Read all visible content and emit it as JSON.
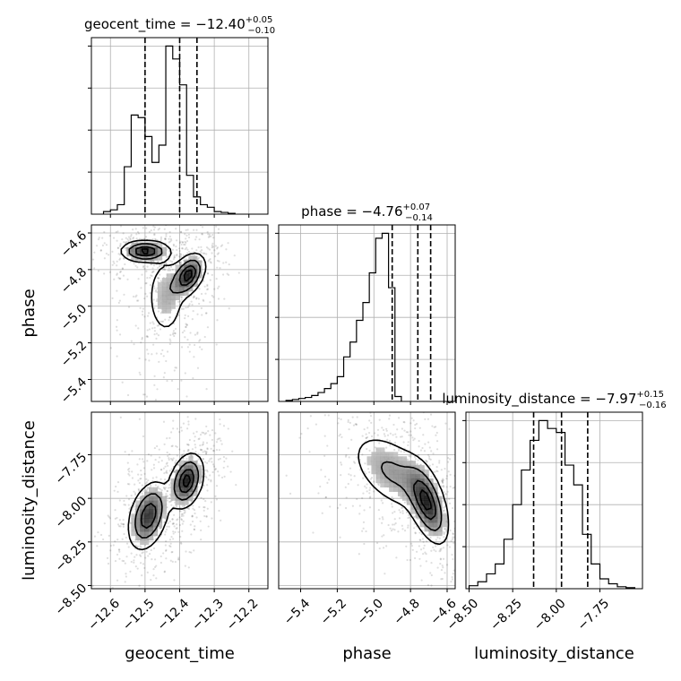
{
  "chart_data": {
    "type": "corner",
    "parameters": [
      "geocent_time",
      "phase",
      "luminosity_distance"
    ],
    "axis_labels": {
      "x": [
        "geocent_time",
        "phase",
        "luminosity_distance"
      ],
      "y_phase": "phase",
      "y_luminosity_distance": "luminosity_distance"
    },
    "titles": [
      {
        "name": "geocent_time",
        "median": "−12.40",
        "plus": "+0.05",
        "minus": "−0.10"
      },
      {
        "name": "phase",
        "median": "−4.76",
        "plus": "+0.07",
        "minus": "−0.14"
      },
      {
        "name": "luminosity_distance",
        "median": "−7.97",
        "plus": "+0.15",
        "minus": "−0.16"
      }
    ],
    "ranges": {
      "geocent_time": [
        -12.655,
        -12.145
      ],
      "phase": [
        -5.52,
        -4.556
      ],
      "luminosity_distance": [
        -8.518,
        -7.506
      ]
    },
    "ticks": {
      "geocent_time": {
        "values": [
          -12.6,
          -12.5,
          -12.4,
          -12.3,
          -12.2
        ],
        "labels": [
          "−12.6",
          "−12.5",
          "−12.4",
          "−12.3",
          "−12.2"
        ]
      },
      "phase": {
        "values": [
          -5.4,
          -5.2,
          -5.0,
          -4.8,
          -4.6
        ],
        "labels": [
          "−5.4",
          "−5.2",
          "−5.0",
          "−4.8",
          "−4.6"
        ]
      },
      "luminosity_distance": {
        "values": [
          -8.5,
          -8.25,
          -8.0,
          -7.75
        ],
        "labels": [
          "−8.50",
          "−8.25",
          "−8.00",
          "−7.75"
        ]
      }
    },
    "quantiles": {
      "geocent_time": [
        -12.5,
        -12.4,
        -12.35
      ],
      "phase": [
        -4.9,
        -4.76,
        -4.69
      ],
      "luminosity_distance": [
        -8.13,
        -7.97,
        -7.82
      ]
    },
    "histograms": {
      "geocent_time": {
        "edges_start": -12.62,
        "bin_width": 0.02,
        "counts": [
          0.3,
          0.5,
          1.1,
          5.5,
          11.5,
          11.2,
          9.0,
          6.0,
          8.0,
          19.5,
          18.0,
          15.0,
          4.5,
          2.0,
          1.1,
          0.8,
          0.3,
          0.2,
          0.1
        ]
      },
      "phase": {
        "edges_start": -5.48,
        "bin_width": 0.035,
        "counts": [
          0.1,
          0.2,
          0.3,
          0.4,
          0.6,
          0.9,
          1.3,
          1.8,
          2.5,
          4.5,
          6.0,
          8.2,
          10.0,
          13.0,
          16.5,
          17.0,
          11.5,
          0.5
        ]
      },
      "luminosity_distance": {
        "edges_start": -8.5,
        "bin_width": 0.05,
        "counts": [
          0.3,
          0.7,
          1.5,
          2.5,
          5.0,
          8.5,
          12.0,
          15.0,
          17.0,
          16.2,
          15.8,
          12.5,
          10.5,
          5.5,
          2.5,
          1.0,
          0.5,
          0.2,
          0.1
        ]
      }
    },
    "density_clusters": {
      "phase_vs_geocent_time": [
        {
          "x": -12.5,
          "y": -4.7,
          "sx": 0.035,
          "sy": 0.03,
          "rho": 0.0,
          "w": 1.0
        },
        {
          "x": -12.375,
          "y": -4.83,
          "sx": 0.025,
          "sy": 0.06,
          "rho": 0.4,
          "w": 1.0
        },
        {
          "x": -12.44,
          "y": -4.95,
          "sx": 0.03,
          "sy": 0.12,
          "rho": 0.0,
          "w": 0.35
        }
      ],
      "luminosity_distance_vs_geocent_time": [
        {
          "x": -12.38,
          "y": -7.9,
          "sx": 0.025,
          "sy": 0.08,
          "rho": 0.3,
          "w": 1.0
        },
        {
          "x": -12.49,
          "y": -8.1,
          "sx": 0.03,
          "sy": 0.1,
          "rho": 0.35,
          "w": 0.9
        }
      ],
      "luminosity_distance_vs_phase": [
        {
          "x": -4.71,
          "y": -8.03,
          "sx": 0.06,
          "sy": 0.12,
          "rho": -0.55,
          "w": 1.0
        },
        {
          "x": -4.9,
          "y": -7.85,
          "sx": 0.12,
          "sy": 0.12,
          "rho": -0.5,
          "w": 0.5
        }
      ]
    },
    "legend": "none",
    "grid": true,
    "line_color": "#000000",
    "grid_color": "#b0b0b0"
  }
}
